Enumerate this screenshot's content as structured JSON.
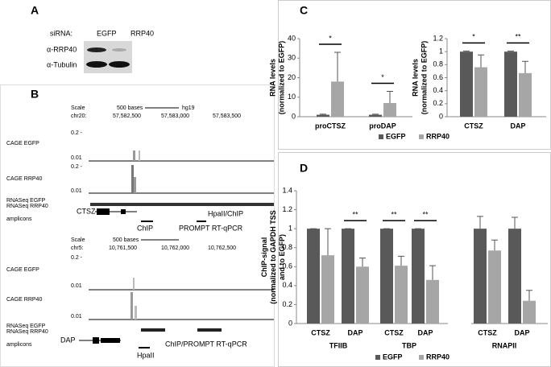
{
  "panel_a": {
    "letter": "A",
    "sirna_label": "siRNA:",
    "lanes": [
      "EGFP",
      "RRP40"
    ],
    "rows": [
      "α-RRP40",
      "α-Tubulin"
    ]
  },
  "panel_b": {
    "letter": "B",
    "browser_1": {
      "scale": "Scale",
      "scale_bar": "500 bases",
      "assembly": "hg19",
      "chrom": "chr20:",
      "positions": [
        "57,582,500",
        "57,583,000",
        "57,583,500"
      ],
      "tracks": [
        "CAGE EGFP",
        "CAGE RRP40",
        "RNASeq EGFP",
        "RNASeq RRP40",
        "amplicons"
      ],
      "axis_labels": [
        "0.2 -",
        "0.01",
        "0.2 -",
        "0.01"
      ],
      "features": [
        "CTSZ",
        "HpaII/ChIP",
        "ChIP",
        "PROMPT RT-qPCR"
      ]
    },
    "browser_2": {
      "scale": "Scale",
      "scale_bar": "500 bases",
      "chrom": "chr5:",
      "positions": [
        "10,761,500",
        "10,762,000",
        "10,762,500"
      ],
      "tracks": [
        "CAGE EGFP",
        "CAGE RRP40",
        "RNASeq EGFP",
        "RNASeq RRP40",
        "amplicons"
      ],
      "axis_labels": [
        "0.2 -",
        "0.01",
        "0.01"
      ],
      "features": [
        "DAP",
        "HpaII",
        "ChIP/PROMPT RT-qPCR"
      ]
    }
  },
  "panel_c_letter": "C",
  "panel_d_letter": "D",
  "chart_data": [
    {
      "type": "bar",
      "ylabel": [
        "RNA levels",
        "(normalized to EGFP)"
      ],
      "categories": [
        "proCTSZ",
        "proDAP"
      ],
      "series": [
        {
          "color": "#595959",
          "values": [
            1,
            1
          ],
          "errors": [
            0.3,
            0.3
          ]
        },
        {
          "color": "#a6a6a6",
          "values": [
            18,
            7
          ],
          "errors": [
            15,
            6
          ]
        }
      ],
      "significance": [
        "*",
        "*"
      ],
      "ylim": [
        0,
        40
      ],
      "yticks": [
        0,
        10,
        20,
        30,
        40
      ]
    },
    {
      "type": "bar",
      "ylabel": [
        "RNA levels",
        "(normalized to EGFP)"
      ],
      "categories": [
        "CTSZ",
        "DAP"
      ],
      "series": [
        {
          "name": "EGFP",
          "color": "#595959",
          "values": [
            1,
            1
          ],
          "errors": [
            0.01,
            0.01
          ]
        },
        {
          "name": "RRP40",
          "color": "#a6a6a6",
          "values": [
            0.76,
            0.67
          ],
          "errors": [
            0.19,
            0.18
          ]
        }
      ],
      "significance": [
        "*",
        "**"
      ],
      "ylim": [
        0,
        1.2
      ],
      "yticks": [
        0,
        0.2,
        0.4,
        0.6,
        0.8,
        1,
        1.2
      ],
      "legend": "bottom"
    },
    {
      "type": "bar",
      "ylabel": [
        "ChIP-signal",
        "(normalized to GAPDH TSS",
        "and to EGFP)"
      ],
      "categories": [
        "CTSZ",
        "DAP",
        "CTSZ",
        "DAP",
        "CTSZ",
        "DAP"
      ],
      "groups": [
        "TFIIB",
        "TBP",
        "RNAPII"
      ],
      "series": [
        {
          "name": "EGFP",
          "color": "#595959",
          "values": [
            1,
            1,
            1,
            1,
            1,
            1
          ],
          "errors": [
            0,
            0,
            0,
            0,
            0.13,
            0.12
          ]
        },
        {
          "name": "RRP40",
          "color": "#a6a6a6",
          "values": [
            0.72,
            0.6,
            0.61,
            0.46,
            0.77,
            0.24
          ],
          "errors": [
            0.28,
            0.09,
            0.1,
            0.15,
            0.11,
            0.11
          ]
        }
      ],
      "significance": [
        null,
        "**",
        "**",
        "**",
        null,
        null
      ],
      "ylim": [
        0,
        1.4
      ],
      "yticks": [
        0,
        0.2,
        0.4,
        0.6,
        0.8,
        1,
        1.2,
        1.4
      ],
      "legend": "bottom"
    }
  ]
}
